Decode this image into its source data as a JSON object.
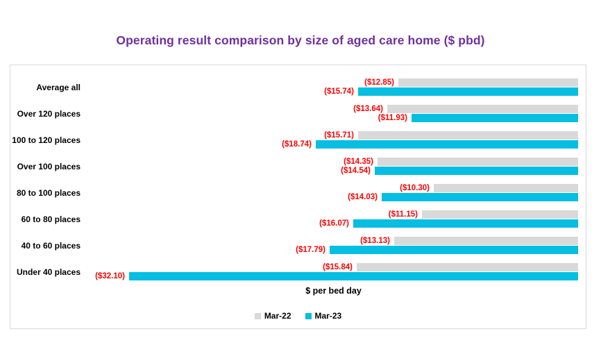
{
  "title": "Operating result comparison by size of aged care home ($ pbd)",
  "colors": {
    "title_text": "#7030A0",
    "value_labels": "#FF0000",
    "mar22_bar": "#D9D9D9",
    "mar23_bar": "#05BEE2",
    "panel_border": "#D9D9D9"
  },
  "chart_data": {
    "type": "bar",
    "orientation": "horizontal",
    "title": "Operating result comparison by size of aged care home ($ pbd)",
    "xlabel": "$ per bed day",
    "xlim": [
      -35,
      0
    ],
    "grid": false,
    "legend_position": "bottom-center",
    "value_labels_shown": true,
    "categories": [
      "Average all",
      "Over 120 places",
      "100 to 120 places",
      "Over 100 places",
      "80 to 100 places",
      "60 to 80 places",
      "40 to 60 places",
      "Under 40 places"
    ],
    "series": [
      {
        "name": "Mar-22",
        "color": "#D9D9D9",
        "values": [
          -12.85,
          -13.64,
          -15.71,
          -14.35,
          -10.3,
          -11.15,
          -13.13,
          -15.84
        ],
        "data_labels": [
          "($12.85)",
          "($13.64)",
          "($15.71)",
          "($14.35)",
          "($10.30)",
          "($11.15)",
          "($13.13)",
          "($15.84)"
        ]
      },
      {
        "name": "Mar-23",
        "color": "#05BEE2",
        "values": [
          -15.74,
          -11.93,
          -18.74,
          -14.54,
          -14.03,
          -16.07,
          -17.79,
          -32.1
        ],
        "data_labels": [
          "($15.74)",
          "($11.93)",
          "($18.74)",
          "($14.54)",
          "($14.03)",
          "($16.07)",
          "($17.79)",
          "($32.10)"
        ]
      }
    ]
  }
}
